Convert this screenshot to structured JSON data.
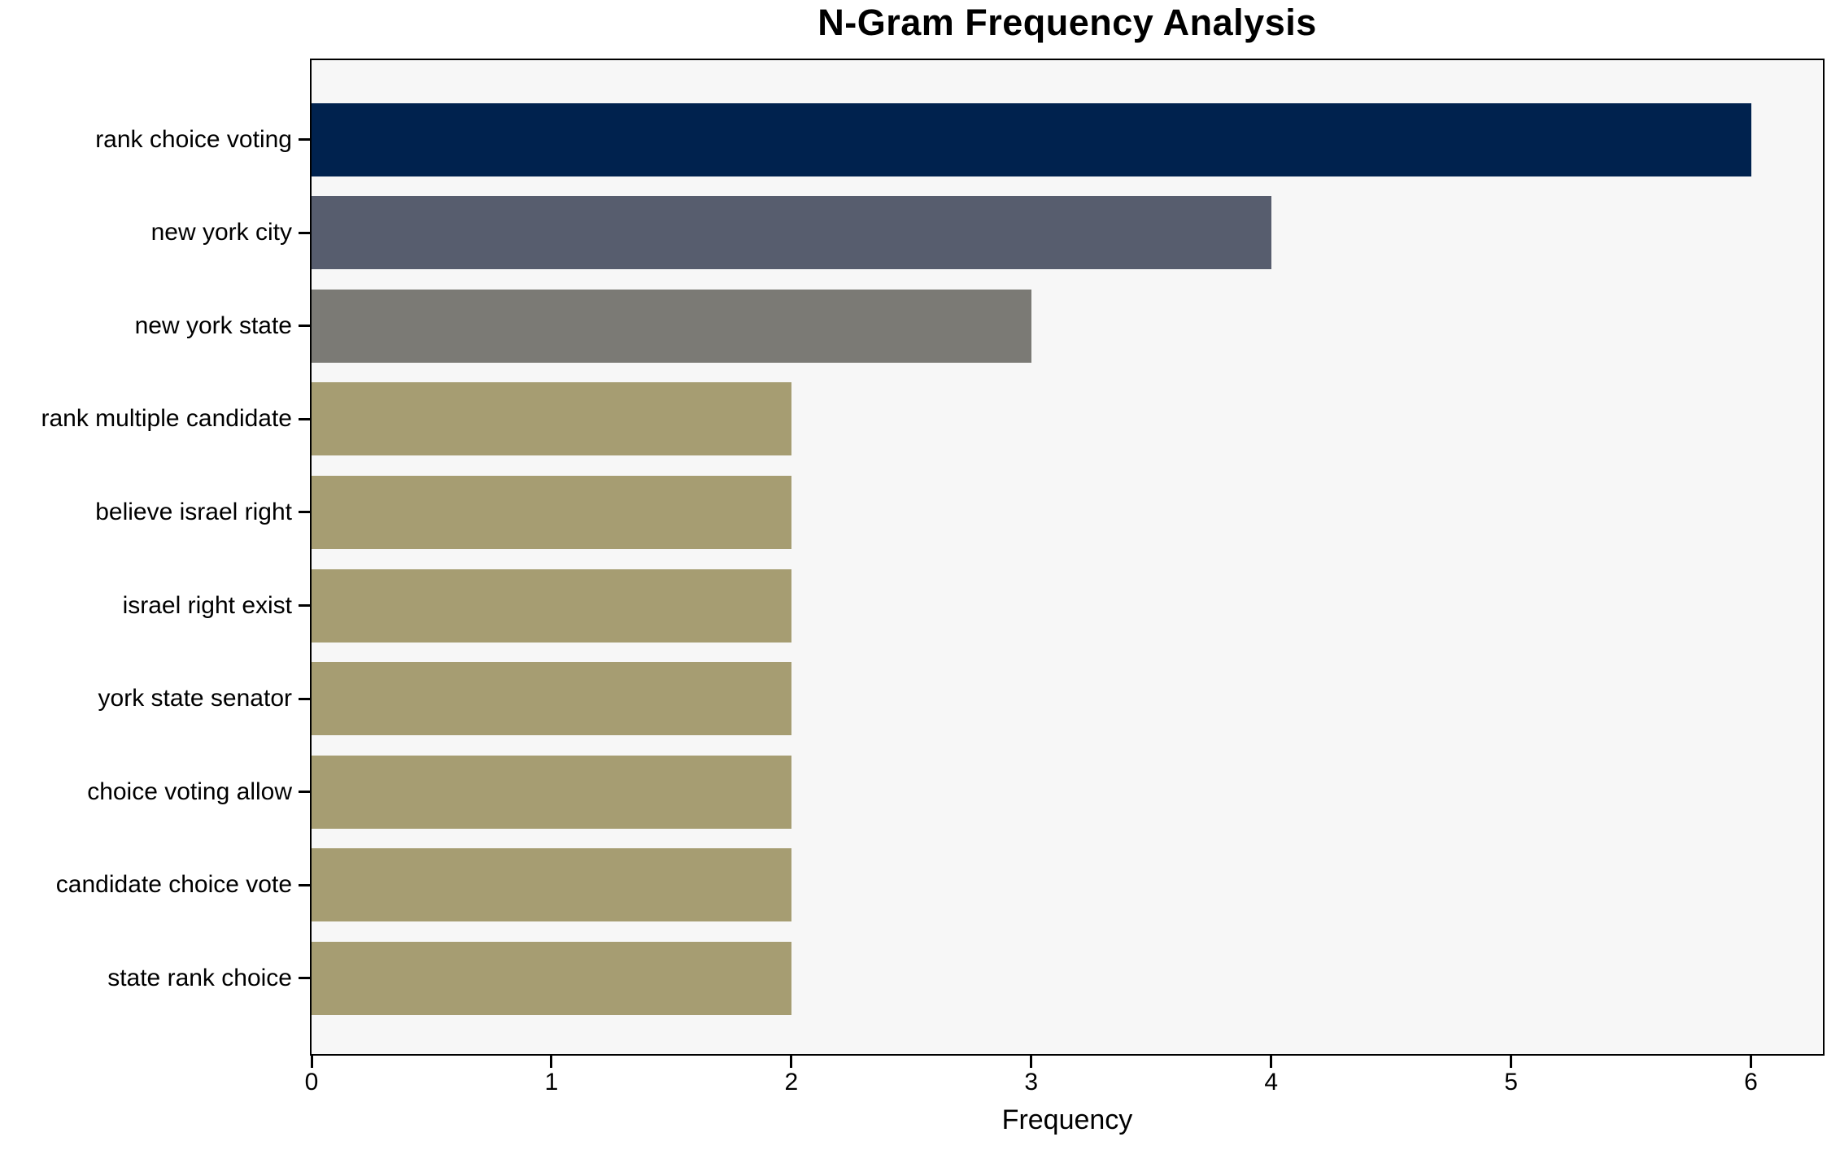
{
  "figure": {
    "background": "#ffffff",
    "plot_background": "#f7f7f7",
    "spine_color": "#000000",
    "text_color": "#000000"
  },
  "chart_data": {
    "type": "bar",
    "orientation": "horizontal",
    "title": "N-Gram Frequency Analysis",
    "xlabel": "Frequency",
    "ylabel": "",
    "categories": [
      "rank choice voting",
      "new york city",
      "new york state",
      "rank multiple candidate",
      "believe israel right",
      "israel right exist",
      "york state senator",
      "choice voting allow",
      "candidate choice vote",
      "state rank choice"
    ],
    "values": [
      6,
      4,
      3,
      2,
      2,
      2,
      2,
      2,
      2,
      2
    ],
    "bar_colors": [
      "#00224e",
      "#575d6e",
      "#7b7a75",
      "#a69d72",
      "#a69d72",
      "#a69d72",
      "#a69d72",
      "#a69d72",
      "#a69d72",
      "#a69d72"
    ],
    "xticks": [
      0,
      1,
      2,
      3,
      4,
      5,
      6
    ],
    "xlim": [
      0,
      6.3
    ],
    "grid": false,
    "legend": null
  }
}
